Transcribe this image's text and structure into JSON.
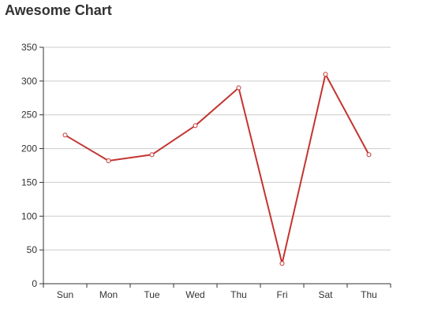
{
  "chart_data": {
    "type": "line",
    "title": "Awesome Chart",
    "categories": [
      "Sun",
      "Mon",
      "Tue",
      "Wed",
      "Thu",
      "Fri",
      "Sat",
      "Thu"
    ],
    "series": [
      {
        "values": [
          220,
          182,
          191,
          234,
          290,
          30,
          310,
          191
        ],
        "color": "#c23531"
      }
    ],
    "ylim": [
      0,
      350
    ],
    "yticks": [
      0,
      50,
      100,
      150,
      200,
      250,
      300,
      350
    ],
    "grid": true
  }
}
